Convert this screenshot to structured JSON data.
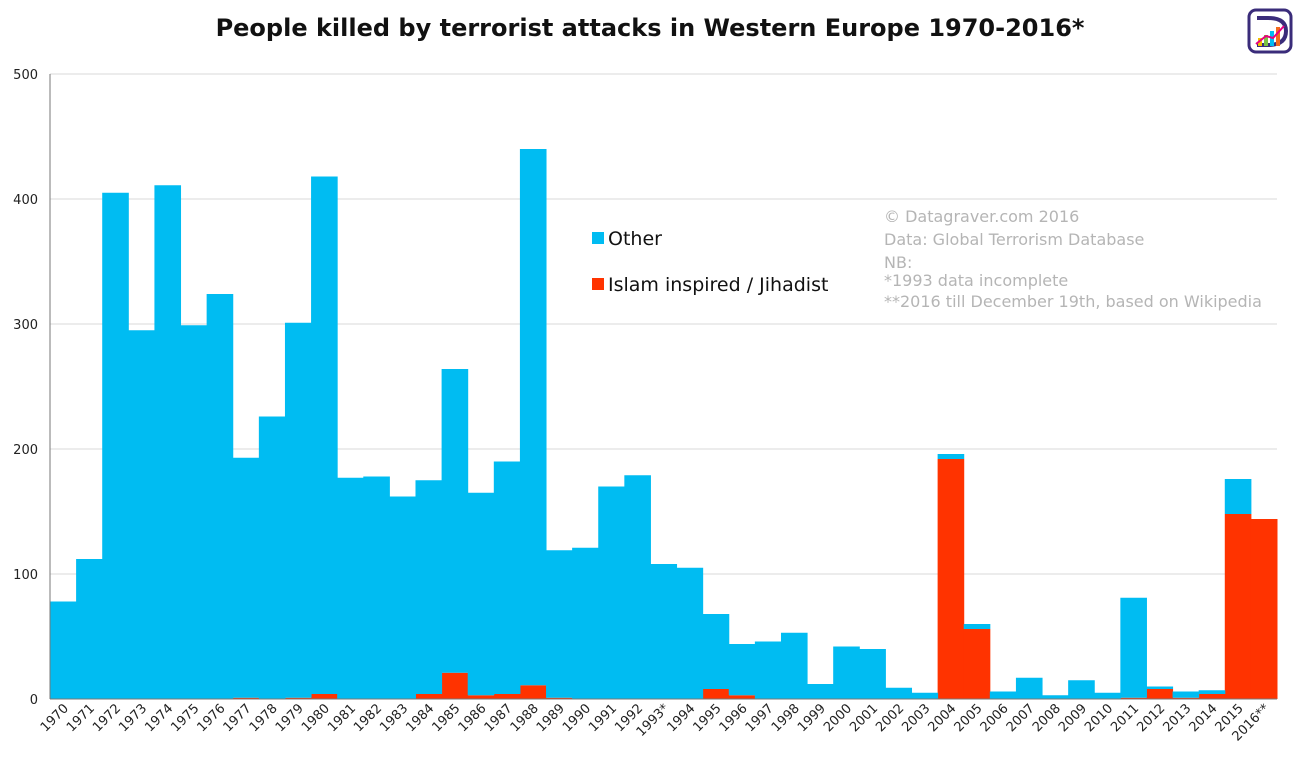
{
  "chart_data": {
    "type": "bar",
    "stacked": true,
    "title": "People killed by terrorist attacks in Western Europe 1970-2016*",
    "ylim": [
      0,
      500
    ],
    "yticks": [
      0,
      100,
      200,
      300,
      400,
      500
    ],
    "grid": true,
    "legend_position": "center",
    "categories": [
      "1970",
      "1971",
      "1972",
      "1973",
      "1974",
      "1975",
      "1976",
      "1977",
      "1978",
      "1979",
      "1980",
      "1981",
      "1982",
      "1983",
      "1984",
      "1985",
      "1986",
      "1987",
      "1988",
      "1989",
      "1990",
      "1991",
      "1992",
      "1993*",
      "1994",
      "1995",
      "1996",
      "1997",
      "1998",
      "1999",
      "2000",
      "2001",
      "2002",
      "2003",
      "2004",
      "2005",
      "2006",
      "2007",
      "2008",
      "2009",
      "2010",
      "2011",
      "2012",
      "2013",
      "2014",
      "2015",
      "2016**"
    ],
    "series": [
      {
        "name": "Islam inspired / Jihadist",
        "color": "#ff3300",
        "values": [
          0,
          0,
          0,
          0,
          0,
          0,
          0,
          1,
          0,
          1,
          4,
          0,
          0,
          0,
          4,
          21,
          3,
          4,
          11,
          1,
          0,
          0,
          0,
          0,
          0,
          8,
          3,
          0,
          0,
          0,
          0,
          0,
          0,
          0,
          192,
          56,
          0,
          0,
          0,
          0,
          0,
          1,
          8,
          1,
          4,
          148,
          144
        ]
      },
      {
        "name": "Other",
        "color": "#00bcf2",
        "values": [
          78,
          112,
          405,
          295,
          411,
          299,
          324,
          192,
          226,
          300,
          414,
          177,
          178,
          162,
          171,
          243,
          162,
          186,
          429,
          118,
          121,
          170,
          179,
          108,
          105,
          60,
          41,
          46,
          53,
          12,
          42,
          40,
          9,
          5,
          4,
          4,
          6,
          17,
          3,
          15,
          5,
          80,
          2,
          5,
          3,
          28,
          0
        ]
      }
    ],
    "notes": [
      "© Datagraver.com 2016",
      "Data: Global Terrorism Database",
      "NB:",
      "*1993 data incomplete",
      "**2016 till December 19th, based on Wikipedia"
    ]
  },
  "colors": {
    "background": "#ffffff",
    "grid": "#d9d9d9",
    "axis": "#777777",
    "note_text": "#b5b5b5"
  },
  "logo": {
    "icon": "datagraver-logo-icon"
  }
}
